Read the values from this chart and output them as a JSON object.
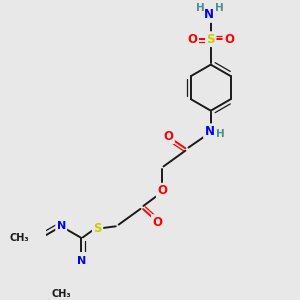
{
  "background_color": "#e8e8e8",
  "bond_color": "#1a1a1a",
  "atom_colors": {
    "N": "#0000ff",
    "O": "#ff0000",
    "S": "#cccc00",
    "H": "#4a9090",
    "C": "#1a1a1a"
  },
  "figsize": [
    3.0,
    3.0
  ],
  "dpi": 100,
  "xlim": [
    0,
    10
  ],
  "ylim": [
    0,
    10
  ]
}
